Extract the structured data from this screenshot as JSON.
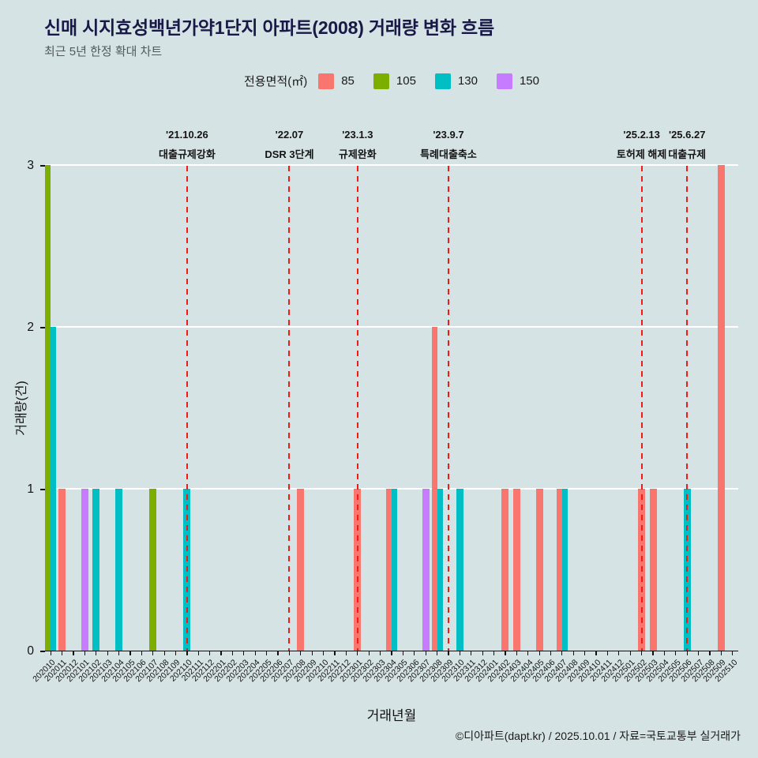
{
  "title": "신매 시지효성백년가약1단지 아파트(2008) 거래량 변화 흐름",
  "subtitle": "최근 5년 한정 확대 차트",
  "caption": "©디아파트(dapt.kr) / 2025.10.01 / 자료=국토교통부 실거래가",
  "legend": {
    "label": "전용면적(㎡)",
    "items": [
      {
        "label": "85",
        "color": "#F8766D"
      },
      {
        "label": "105",
        "color": "#7CAE00"
      },
      {
        "label": "130",
        "color": "#00BFC4"
      },
      {
        "label": "150",
        "color": "#C77CFF"
      }
    ]
  },
  "colors": {
    "background": "#d6e3e4",
    "gridline": "#ffffff",
    "event_line": "#f21b14",
    "title": "#191947"
  },
  "chart_data": {
    "type": "bar",
    "title": "신매 시지효성백년가약1단지 아파트(2008) 거래량 변화 흐름",
    "subtitle": "최근 5년 한정 확대 차트",
    "xlabel": "거래년월",
    "ylabel": "거래량(건)",
    "ylim": [
      0,
      3
    ],
    "yticks": [
      0,
      1,
      2,
      3
    ],
    "grid": "horizontal-white-major",
    "legend_position": "top",
    "categories": [
      "202010",
      "202011",
      "202012",
      "202101",
      "202102",
      "202103",
      "202104",
      "202105",
      "202106",
      "202107",
      "202108",
      "202109",
      "202110",
      "202111",
      "202112",
      "202201",
      "202202",
      "202203",
      "202204",
      "202205",
      "202206",
      "202207",
      "202208",
      "202209",
      "202210",
      "202211",
      "202212",
      "202301",
      "202302",
      "202303",
      "202304",
      "202305",
      "202306",
      "202307",
      "202308",
      "202309",
      "202310",
      "202311",
      "202312",
      "202401",
      "202402",
      "202403",
      "202404",
      "202405",
      "202406",
      "202407",
      "202408",
      "202409",
      "202410",
      "202411",
      "202412",
      "202501",
      "202502",
      "202503",
      "202504",
      "202505",
      "202506",
      "202507",
      "202508",
      "202509",
      "202510"
    ],
    "series": [
      {
        "name": "85",
        "color": "#F8766D",
        "values": {
          "202011": 1,
          "202208": 1,
          "202301": 1,
          "202304": 1,
          "202308": 2,
          "202402": 1,
          "202403": 1,
          "202405": 1,
          "202407": 1,
          "202502": 1,
          "202503": 1,
          "202509": 3
        }
      },
      {
        "name": "105",
        "color": "#7CAE00",
        "values": {
          "202010": 3,
          "202107": 1
        }
      },
      {
        "name": "130",
        "color": "#00BFC4",
        "values": {
          "202010": 2,
          "202102": 1,
          "202104": 1,
          "202110": 1,
          "202304": 1,
          "202308": 1,
          "202310": 1,
          "202407": 1,
          "202506": 1
        }
      },
      {
        "name": "150",
        "color": "#C77CFF",
        "values": {
          "202101": 1,
          "202307": 1
        }
      }
    ],
    "events": [
      {
        "month": "202110",
        "date": "'21.10.26",
        "label": "대출규제강화"
      },
      {
        "month": "202207",
        "date": "'22.07",
        "label": "DSR 3단계"
      },
      {
        "month": "202301",
        "date": "'23.1.3",
        "label": "규제완화"
      },
      {
        "month": "202309",
        "date": "'23.9.7",
        "label": "특례대출축소"
      },
      {
        "month": "202502",
        "date": "'25.2.13",
        "label": "토허제 해제"
      },
      {
        "month": "202506",
        "date": "'25.6.27",
        "label": "대출규제"
      }
    ]
  }
}
